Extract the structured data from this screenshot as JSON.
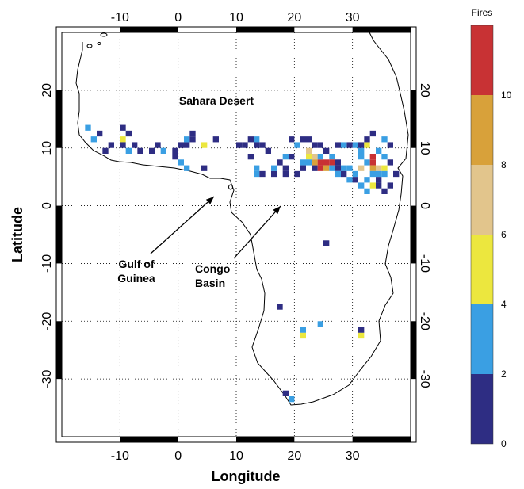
{
  "map": {
    "xlabel": "Longitude",
    "ylabel": "Latitude",
    "lon_range": [
      -20,
      40
    ],
    "lat_range": [
      -40,
      30
    ],
    "lon_ticks": [
      "-10",
      "0",
      "10",
      "20",
      "30"
    ],
    "lat_ticks": [
      "20",
      "10",
      "0",
      "-10",
      "-20",
      "-30"
    ],
    "gridlines": "dotted",
    "annotations": {
      "sahara": "Sahara Desert",
      "gulf_line1": "Gulf of",
      "gulf_line2": "Guinea",
      "congo_line1": "Congo",
      "congo_line2": "Basin"
    }
  },
  "colorbar": {
    "title": "Fires",
    "tick_labels": [
      "0",
      "2",
      "4",
      "6",
      "8",
      "10"
    ],
    "bands": [
      {
        "from": 0,
        "to": 2,
        "color": "#2e2d83"
      },
      {
        "from": 2,
        "to": 4,
        "color": "#3a9fe3"
      },
      {
        "from": 4,
        "to": 6,
        "color": "#ece73e"
      },
      {
        "from": 6,
        "to": 8,
        "color": "#e2c58c"
      },
      {
        "from": 8,
        "to": 10,
        "color": "#d8a13a"
      },
      {
        "from": 10,
        "to": 12,
        "color": "#c83234"
      }
    ]
  },
  "chart_data": {
    "type": "heatmap",
    "value_name": "Fires",
    "cells": [
      [
        -16,
        13,
        2
      ],
      [
        -15,
        11,
        2
      ],
      [
        -14,
        12,
        1
      ],
      [
        -13,
        9,
        1
      ],
      [
        -12,
        10,
        1
      ],
      [
        -10,
        13,
        1
      ],
      [
        -10,
        11,
        5
      ],
      [
        -9,
        12,
        1
      ],
      [
        -10,
        10,
        0
      ],
      [
        -9,
        9,
        2
      ],
      [
        -8,
        10,
        1
      ],
      [
        -7,
        9,
        1
      ],
      [
        -5,
        9,
        1
      ],
      [
        -4,
        10,
        1
      ],
      [
        -3,
        9,
        2
      ],
      [
        -1,
        9,
        1
      ],
      [
        -1,
        8,
        0
      ],
      [
        0,
        10,
        1
      ],
      [
        1,
        10,
        0
      ],
      [
        1,
        11,
        2
      ],
      [
        2,
        11,
        1
      ],
      [
        0,
        7,
        3
      ],
      [
        1,
        6,
        2
      ],
      [
        2,
        12,
        1
      ],
      [
        4,
        10,
        5
      ],
      [
        4,
        6,
        1
      ],
      [
        6,
        11,
        1
      ],
      [
        10,
        10,
        1
      ],
      [
        11,
        10,
        1
      ],
      [
        12,
        11,
        1
      ],
      [
        13,
        11,
        2
      ],
      [
        13,
        10,
        1
      ],
      [
        14,
        10,
        0
      ],
      [
        15,
        9,
        1
      ],
      [
        12,
        8,
        0
      ],
      [
        13,
        6,
        2
      ],
      [
        13,
        5,
        2
      ],
      [
        14,
        5,
        1
      ],
      [
        16,
        5,
        1
      ],
      [
        18,
        5,
        1
      ],
      [
        16,
        6,
        2
      ],
      [
        18,
        6,
        1
      ],
      [
        17,
        7,
        1
      ],
      [
        18,
        8,
        2
      ],
      [
        19,
        8,
        0
      ],
      [
        20,
        10,
        2
      ],
      [
        19,
        11,
        1
      ],
      [
        20,
        5,
        1
      ],
      [
        21,
        7,
        3
      ],
      [
        21,
        6,
        1
      ],
      [
        21,
        11,
        1
      ],
      [
        22,
        9,
        6
      ],
      [
        22,
        8,
        5
      ],
      [
        22,
        7,
        3
      ],
      [
        23,
        8,
        7
      ],
      [
        23,
        7,
        8
      ],
      [
        23,
        6,
        1
      ],
      [
        24,
        7,
        10
      ],
      [
        24,
        6,
        11
      ],
      [
        25,
        7,
        10
      ],
      [
        25,
        6,
        9
      ],
      [
        24,
        8,
        2
      ],
      [
        24,
        10,
        1
      ],
      [
        25,
        9,
        1
      ],
      [
        26,
        8,
        3
      ],
      [
        26,
        7,
        11
      ],
      [
        26,
        6,
        3
      ],
      [
        27,
        6,
        1
      ],
      [
        27,
        5,
        3
      ],
      [
        27,
        7,
        1
      ],
      [
        28,
        6,
        3
      ],
      [
        28,
        5,
        1
      ],
      [
        29,
        6,
        2
      ],
      [
        29,
        4,
        2
      ],
      [
        30,
        5,
        3
      ],
      [
        30,
        4,
        1
      ],
      [
        31,
        6,
        7
      ],
      [
        31,
        8,
        2
      ],
      [
        31,
        9,
        3
      ],
      [
        31,
        10,
        0
      ],
      [
        32,
        7,
        3
      ],
      [
        32,
        10,
        5
      ],
      [
        32,
        4,
        3
      ],
      [
        33,
        7,
        10
      ],
      [
        33,
        8,
        11
      ],
      [
        33,
        6,
        9
      ],
      [
        33,
        5,
        3
      ],
      [
        33,
        3,
        5
      ],
      [
        34,
        6,
        7
      ],
      [
        34,
        5,
        2
      ],
      [
        34,
        9,
        3
      ],
      [
        34,
        4,
        1
      ],
      [
        35,
        8,
        3
      ],
      [
        35,
        6,
        5
      ],
      [
        35,
        5,
        2
      ],
      [
        35,
        11,
        2
      ],
      [
        36,
        10,
        1
      ],
      [
        36,
        7,
        1
      ],
      [
        37,
        5,
        1
      ],
      [
        32,
        11,
        1
      ],
      [
        33,
        12,
        1
      ],
      [
        30,
        10,
        2
      ],
      [
        29,
        10,
        0
      ],
      [
        28,
        10,
        2
      ],
      [
        27,
        10,
        1
      ],
      [
        23,
        10,
        0
      ],
      [
        22,
        11,
        1
      ],
      [
        31,
        3,
        2
      ],
      [
        32,
        2,
        3
      ],
      [
        34,
        3,
        0
      ],
      [
        35,
        2,
        1
      ],
      [
        36,
        3,
        1
      ],
      [
        25,
        -7,
        1
      ],
      [
        17,
        -18,
        1
      ],
      [
        21,
        -22,
        2
      ],
      [
        21,
        -23,
        4
      ],
      [
        24,
        -21,
        2
      ],
      [
        31,
        -22,
        1
      ],
      [
        31,
        -23,
        4
      ],
      [
        18,
        -33,
        1
      ],
      [
        19,
        -34,
        2
      ]
    ]
  }
}
